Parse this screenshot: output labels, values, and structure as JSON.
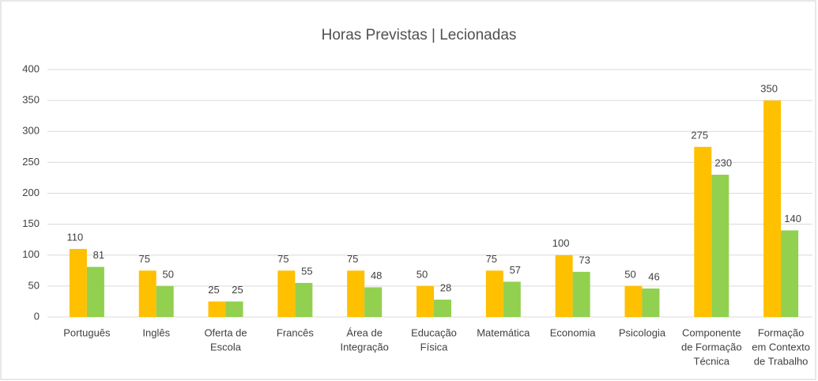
{
  "chart_data": {
    "type": "bar",
    "title": "Horas Previstas | Lecionadas",
    "categories": [
      [
        "Português"
      ],
      [
        "Inglês"
      ],
      [
        "Oferta de",
        "Escola"
      ],
      [
        "Francês"
      ],
      [
        "Área de",
        "Integração"
      ],
      [
        "Educação",
        "Física"
      ],
      [
        "Matemática"
      ],
      [
        "Economia"
      ],
      [
        "Psicologia"
      ],
      [
        "Componente",
        "de Formação",
        "Técnica"
      ],
      [
        "Formação",
        "em Contexto",
        "de Trabalho"
      ]
    ],
    "series": [
      {
        "color": "#FFC000",
        "values": [
          110,
          75,
          25,
          75,
          75,
          50,
          75,
          100,
          50,
          275,
          350
        ]
      },
      {
        "color": "#92D050",
        "values": [
          81,
          50,
          25,
          55,
          48,
          28,
          57,
          73,
          46,
          230,
          140
        ]
      }
    ],
    "ylim": [
      0,
      400
    ],
    "yticks": [
      0,
      50,
      100,
      150,
      200,
      250,
      300,
      350,
      400
    ],
    "grid": true
  }
}
